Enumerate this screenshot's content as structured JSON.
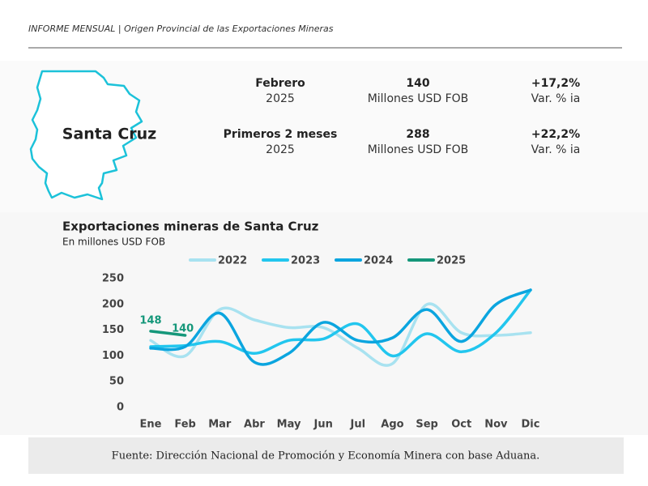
{
  "header": {
    "title": "INFORME MENSUAL | Origen Provincial de las Exportaciones Mineras"
  },
  "province": "Santa Cruz",
  "stats": [
    {
      "period": "Febrero",
      "year": "2025",
      "value": 140,
      "unit": "Millones USD FOB",
      "change": "+17,2%",
      "change_label": "Var. % ia"
    },
    {
      "period": "Primeros 2 meses",
      "year": "2025",
      "value": 288,
      "unit": "Millones USD FOB",
      "change": "+22,2%",
      "change_label": "Var. % ia"
    }
  ],
  "chart_data": {
    "type": "line",
    "title": "Exportaciones mineras de Santa Cruz",
    "subtitle": "En millones USD FOB",
    "categories": [
      "Ene",
      "Feb",
      "Mar",
      "Abr",
      "May",
      "Jun",
      "Jul",
      "Ago",
      "Sep",
      "Oct",
      "Nov",
      "Dic"
    ],
    "series": [
      {
        "name": "2022",
        "color": "#a8e2f0",
        "values": [
          130,
          100,
          190,
          170,
          155,
          155,
          115,
          85,
          200,
          145,
          140,
          145
        ]
      },
      {
        "name": "2023",
        "color": "#22c6ee",
        "values": [
          118,
          120,
          128,
          105,
          130,
          133,
          162,
          100,
          143,
          108,
          145,
          228
        ]
      },
      {
        "name": "2024",
        "color": "#0ba5df",
        "values": [
          115,
          118,
          183,
          88,
          105,
          165,
          130,
          135,
          190,
          128,
          200,
          228
        ]
      },
      {
        "name": "2025",
        "color": "#15977a",
        "values": [
          148,
          140,
          null,
          null,
          null,
          null,
          null,
          null,
          null,
          null,
          null,
          null
        ],
        "show_labels": true
      }
    ],
    "ylim": [
      0,
      250
    ],
    "yticks": [
      0,
      50,
      100,
      150,
      200,
      250
    ],
    "grid": false
  },
  "source": "Fuente: Dirección Nacional de Promoción y Economía Minera con base Aduana."
}
